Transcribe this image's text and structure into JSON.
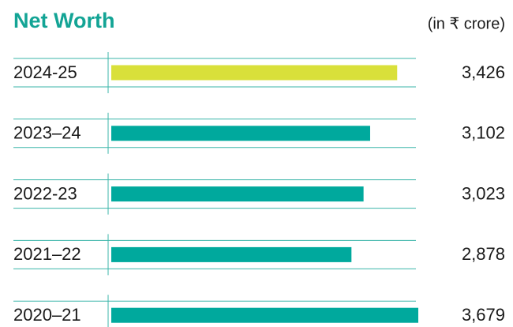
{
  "chart_data": {
    "type": "bar",
    "orientation": "horizontal",
    "title": "Net Worth",
    "subtitle": "(in ₹ crore)",
    "categories": [
      "2024-25",
      "2023–24",
      "2022-23",
      "2021–22",
      "2020–21"
    ],
    "values": [
      3426,
      3102,
      3023,
      2878,
      3679
    ],
    "value_labels": [
      "3,426",
      "3,102",
      "3,023",
      "2,878",
      "3,679"
    ],
    "colors": [
      "#d9e03a",
      "#00a99d",
      "#00a99d",
      "#00a99d",
      "#00a99d"
    ]
  }
}
